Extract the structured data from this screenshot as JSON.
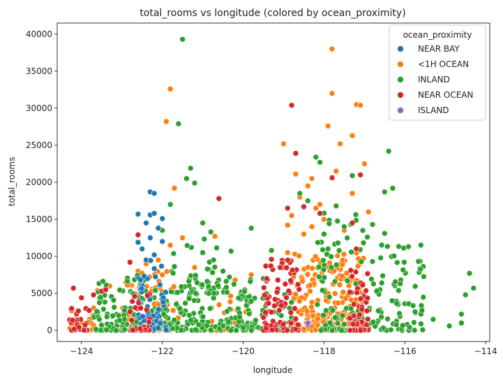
{
  "chart_data": {
    "type": "scatter",
    "title": "total_rooms vs longitude (colored by ocean_proximity)",
    "xlabel": "longitude",
    "ylabel": "total_rooms",
    "xlim": [
      -124.6,
      -113.9
    ],
    "ylim": [
      -1500,
      41500
    ],
    "x_ticks": [
      -124,
      -122,
      -120,
      -118,
      -116,
      -114
    ],
    "x_tick_labels": [
      "−124",
      "−122",
      "−120",
      "−118",
      "−116",
      "−114"
    ],
    "y_ticks": [
      0,
      5000,
      10000,
      15000,
      20000,
      25000,
      30000,
      35000,
      40000
    ],
    "y_tick_labels": [
      "0",
      "5000",
      "10000",
      "15000",
      "20000",
      "25000",
      "30000",
      "35000",
      "40000"
    ],
    "grid": false,
    "legend": {
      "title": "ocean_proximity",
      "placement": "top-right",
      "entries": [
        "NEAR BAY",
        "<1H OCEAN",
        "INLAND",
        "NEAR OCEAN",
        "ISLAND"
      ]
    },
    "series": [
      {
        "name": "<1H OCEAN",
        "color": "#ff7f0e",
        "points": [
          [
            -123.6,
            5400
          ],
          [
            -123.3,
            6000
          ],
          [
            -122.9,
            6500
          ],
          [
            -122.6,
            8000
          ],
          [
            -122.4,
            9000
          ],
          [
            -122.1,
            9500
          ],
          [
            -121.8,
            11500
          ],
          [
            -121.5,
            12500
          ],
          [
            -121.7,
            19200
          ],
          [
            -121.9,
            28200
          ],
          [
            -121.8,
            32600
          ],
          [
            -120.7,
            12700
          ],
          [
            -120.2,
            6800
          ],
          [
            -119.8,
            7500
          ],
          [
            -118.9,
            14200
          ],
          [
            -118.7,
            21100
          ],
          [
            -118.6,
            18000
          ],
          [
            -118.4,
            19500
          ],
          [
            -118.3,
            20500
          ],
          [
            -118.2,
            16500
          ],
          [
            -118.1,
            17000
          ],
          [
            -117.9,
            27600
          ],
          [
            -117.8,
            38000
          ],
          [
            -117.8,
            32000
          ],
          [
            -117.7,
            21500
          ],
          [
            -117.6,
            25200
          ],
          [
            -117.3,
            26300
          ],
          [
            -117.2,
            30500
          ],
          [
            -117.1,
            30400
          ],
          [
            -117.0,
            22500
          ],
          [
            -116.9,
            16000
          ],
          [
            -118.0,
            15000
          ],
          [
            -118.3,
            14000
          ],
          [
            -118.5,
            13000
          ],
          [
            -118.8,
            15500
          ],
          [
            -119.0,
            25200
          ],
          [
            -118.9,
            10500
          ],
          [
            -117.5,
            13500
          ],
          [
            -117.3,
            18500
          ],
          [
            -122.0,
            7500
          ],
          [
            -121.2,
            8500
          ]
        ],
        "clusters": [
          {
            "x": [
              -123.0,
              -121.6
            ],
            "y": [
              0,
              8000
            ],
            "n": 90
          },
          {
            "x": [
              -118.8,
              -117.0
            ],
            "y": [
              0,
              10500
            ],
            "n": 240
          },
          {
            "x": [
              -120.9,
              -119.8
            ],
            "y": [
              0,
              5000
            ],
            "n": 30
          },
          {
            "x": [
              -124.3,
              -123.3
            ],
            "y": [
              0,
              3500
            ],
            "n": 20
          }
        ]
      },
      {
        "name": "INLAND",
        "color": "#2ca02c",
        "points": [
          [
            -121.5,
            39300
          ],
          [
            -121.6,
            27900
          ],
          [
            -121.3,
            21900
          ],
          [
            -121.4,
            20500
          ],
          [
            -121.2,
            19900
          ],
          [
            -121.0,
            14500
          ],
          [
            -120.8,
            13300
          ],
          [
            -120.3,
            10700
          ],
          [
            -119.8,
            13800
          ],
          [
            -119.3,
            10800
          ],
          [
            -118.6,
            18500
          ],
          [
            -118.4,
            17500
          ],
          [
            -118.2,
            23400
          ],
          [
            -118.1,
            22700
          ],
          [
            -117.7,
            16800
          ],
          [
            -117.5,
            14000
          ],
          [
            -117.3,
            20900
          ],
          [
            -116.8,
            14300
          ],
          [
            -116.5,
            18700
          ],
          [
            -116.4,
            24200
          ],
          [
            -116.3,
            19200
          ],
          [
            -116.5,
            13100
          ],
          [
            -116.1,
            6800
          ],
          [
            -116.0,
            3600
          ],
          [
            -115.6,
            2200
          ],
          [
            -115.3,
            1500
          ],
          [
            -114.9,
            600
          ],
          [
            -114.6,
            2200
          ],
          [
            -114.5,
            4800
          ],
          [
            -114.4,
            7700
          ],
          [
            -114.3,
            5700
          ],
          [
            -114.6,
            1000
          ],
          [
            -121.8,
            17000
          ],
          [
            -122.0,
            13500
          ],
          [
            -121.0,
            10500
          ],
          [
            -120.5,
            8000
          ],
          [
            -119.5,
            7000
          ],
          [
            -118.0,
            13000
          ],
          [
            -117.9,
            11000
          ]
        ],
        "clusters": [
          {
            "x": [
              -123.7,
              -119.7
            ],
            "y": [
              0,
              7500
            ],
            "n": 280
          },
          {
            "x": [
              -121.9,
              -120.4
            ],
            "y": [
              5000,
              13000
            ],
            "n": 40
          },
          {
            "x": [
              -119.8,
              -118.8
            ],
            "y": [
              0,
              6000
            ],
            "n": 50
          },
          {
            "x": [
              -118.2,
              -117.0
            ],
            "y": [
              0,
              16000
            ],
            "n": 90
          },
          {
            "x": [
              -117.0,
              -115.5
            ],
            "y": [
              0,
              13000
            ],
            "n": 90
          }
        ]
      },
      {
        "name": "NEAR BAY",
        "color": "#1f77b4",
        "points": [
          [
            -122.3,
            18700
          ],
          [
            -122.2,
            18500
          ],
          [
            -122.6,
            15700
          ],
          [
            -122.3,
            15600
          ],
          [
            -122.2,
            15800
          ],
          [
            -122.0,
            15100
          ],
          [
            -122.4,
            14500
          ],
          [
            -122.1,
            13800
          ],
          [
            -122.6,
            11900
          ],
          [
            -122.5,
            11000
          ],
          [
            -122.3,
            12500
          ],
          [
            -122.0,
            12000
          ],
          [
            -122.2,
            10200
          ],
          [
            -122.4,
            9500
          ]
        ],
        "clusters": [
          {
            "x": [
              -122.6,
              -121.9
            ],
            "y": [
              0,
              9500
            ],
            "n": 60
          }
        ]
      },
      {
        "name": "NEAR OCEAN",
        "color": "#d62728",
        "points": [
          [
            -124.2,
            5700
          ],
          [
            -124.0,
            4400
          ],
          [
            -123.7,
            4800
          ],
          [
            -123.5,
            5300
          ],
          [
            -123.4,
            5500
          ],
          [
            -122.8,
            9200
          ],
          [
            -122.6,
            12900
          ],
          [
            -120.6,
            17800
          ],
          [
            -119.3,
            9600
          ],
          [
            -118.8,
            30400
          ],
          [
            -118.7,
            23900
          ],
          [
            -118.5,
            16700
          ],
          [
            -118.1,
            15800
          ],
          [
            -117.8,
            20600
          ],
          [
            -117.3,
            14500
          ],
          [
            -117.2,
            11000
          ],
          [
            -117.1,
            21000
          ],
          [
            -118.9,
            16500
          ],
          [
            -119.0,
            8500
          ]
        ],
        "clusters": [
          {
            "x": [
              -124.3,
              -123.8
            ],
            "y": [
              0,
              4000
            ],
            "n": 30
          },
          {
            "x": [
              -119.5,
              -118.6
            ],
            "y": [
              0,
              9500
            ],
            "n": 90
          },
          {
            "x": [
              -117.4,
              -116.9
            ],
            "y": [
              0,
              8500
            ],
            "n": 50
          },
          {
            "x": [
              -122.8,
              -122.3
            ],
            "y": [
              0,
              5000
            ],
            "n": 25
          }
        ]
      },
      {
        "name": "ISLAND",
        "color": "#9467bd",
        "points": [
          [
            -118.4,
            700
          ],
          [
            -118.4,
            1000
          ]
        ],
        "clusters": []
      }
    ]
  }
}
